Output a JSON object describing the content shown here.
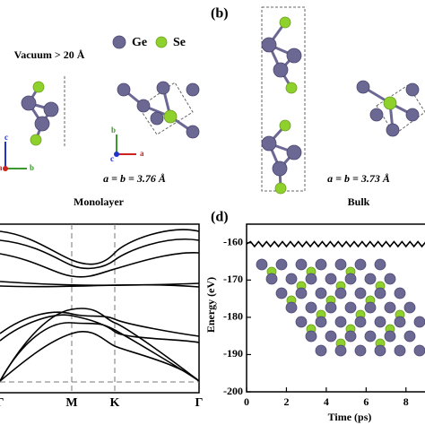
{
  "panel_a": {
    "vacuum_label": "Vacuum > 20 Å",
    "legend": [
      "Ge",
      "Se"
    ],
    "axes_side": [
      "c",
      "b",
      "a"
    ],
    "axes_top": [
      "b",
      "c",
      "a"
    ],
    "lattice": "a = b = 3.76 Å",
    "caption": "Monolayer"
  },
  "panel_b": {
    "label": "(b)",
    "lattice": "a = b = 3.73 Å",
    "caption": "Bulk"
  },
  "panel_c": {
    "k_labels": [
      "Γ",
      "M",
      "K",
      "Γ"
    ]
  },
  "chart_data": {
    "type": "line",
    "panel_label": "(d)",
    "y_label": "Energy (eV)",
    "x_label": "Time (ps)",
    "x": [
      0,
      0.2,
      0.4,
      0.6,
      0.8,
      1.0,
      1.2,
      1.4,
      1.6,
      1.8,
      2.0,
      2.2,
      2.4,
      2.6,
      2.8,
      3.0,
      3.2,
      3.4,
      3.6,
      3.8,
      4.0,
      4.2,
      4.4,
      4.6,
      4.8,
      5.0,
      5.2,
      5.4,
      5.6,
      5.8,
      6.0,
      6.2,
      6.4,
      6.6,
      6.8,
      7.0,
      7.2,
      7.4,
      7.6,
      7.8,
      8.0,
      8.2,
      8.4,
      8.6,
      8.8,
      9.0
    ],
    "series": [
      {
        "color": "#000000",
        "values": [
          -160.3,
          -159.7,
          -161.0,
          -159.7,
          -161.0,
          -159.7,
          -161.0,
          -159.7,
          -161.0,
          -159.7,
          -161.0,
          -159.7,
          -161.0,
          -159.7,
          -161.0,
          -159.7,
          -161.0,
          -159.7,
          -161.0,
          -159.7,
          -161.0,
          -159.7,
          -161.0,
          -159.7,
          -161.0,
          -159.7,
          -161.0,
          -159.7,
          -161.0,
          -159.7,
          -161.0,
          -159.7,
          -161.0,
          -159.7,
          -161.0,
          -159.7,
          -161.0,
          -159.7,
          -161.0,
          -159.7,
          -161.0,
          -159.7,
          -161.0,
          -159.7,
          -161.0,
          -159.7
        ]
      }
    ],
    "xlim": [
      0,
      9
    ],
    "ylim": [
      -200,
      -155
    ],
    "xticks": [
      0,
      2,
      4,
      6,
      8
    ],
    "yticks": [
      -200,
      -190,
      -180,
      -170,
      -160
    ]
  }
}
